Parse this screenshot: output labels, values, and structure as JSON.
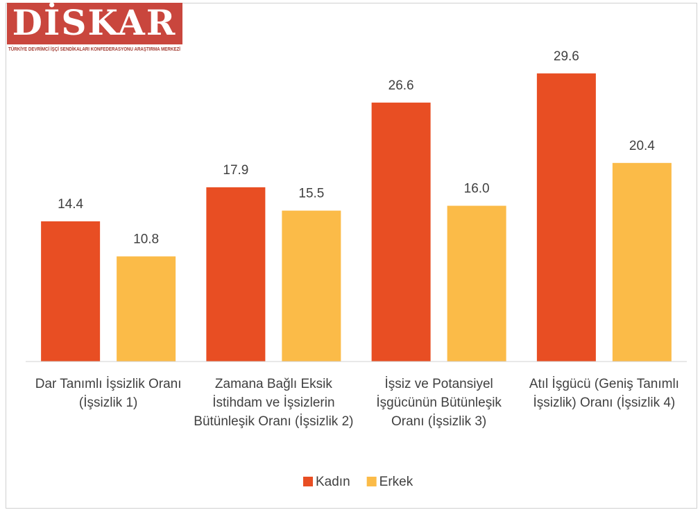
{
  "logo": {
    "name": "DİSKAR",
    "tagline": "TÜRKİYE DEVRİMCİ İŞÇİ SENDİKALARI KONFEDERASYONU ARAŞTIRMA MERKEZİ"
  },
  "chart_data": {
    "type": "bar",
    "categories": [
      "Dar Tanımlı İşsizlik Oranı (İşsizlik 1)",
      "Zamana Bağlı Eksik İstihdam ve İşsizlerin Bütünleşik Oranı (İşsizlik 2)",
      "İşsiz ve Potansiyel İşgücünün Bütünleşik Oranı (İşsizlik 3)",
      "Atıl İşgücü (Geniş Tanımlı İşsizlik) Oranı (İşsizlik 4)"
    ],
    "series": [
      {
        "name": "Kadın",
        "color": "#e84e23",
        "values": [
          14.4,
          17.9,
          26.6,
          29.6
        ],
        "value_labels": [
          "14.4",
          "17.9",
          "26.6",
          "29.6"
        ]
      },
      {
        "name": "Erkek",
        "color": "#fbbb48",
        "values": [
          10.8,
          15.5,
          16.0,
          20.4
        ],
        "value_labels": [
          "10.8",
          "15.5",
          "16.0",
          "20.4"
        ]
      }
    ],
    "ylim": [
      0,
      35
    ],
    "legend": "bottom"
  }
}
